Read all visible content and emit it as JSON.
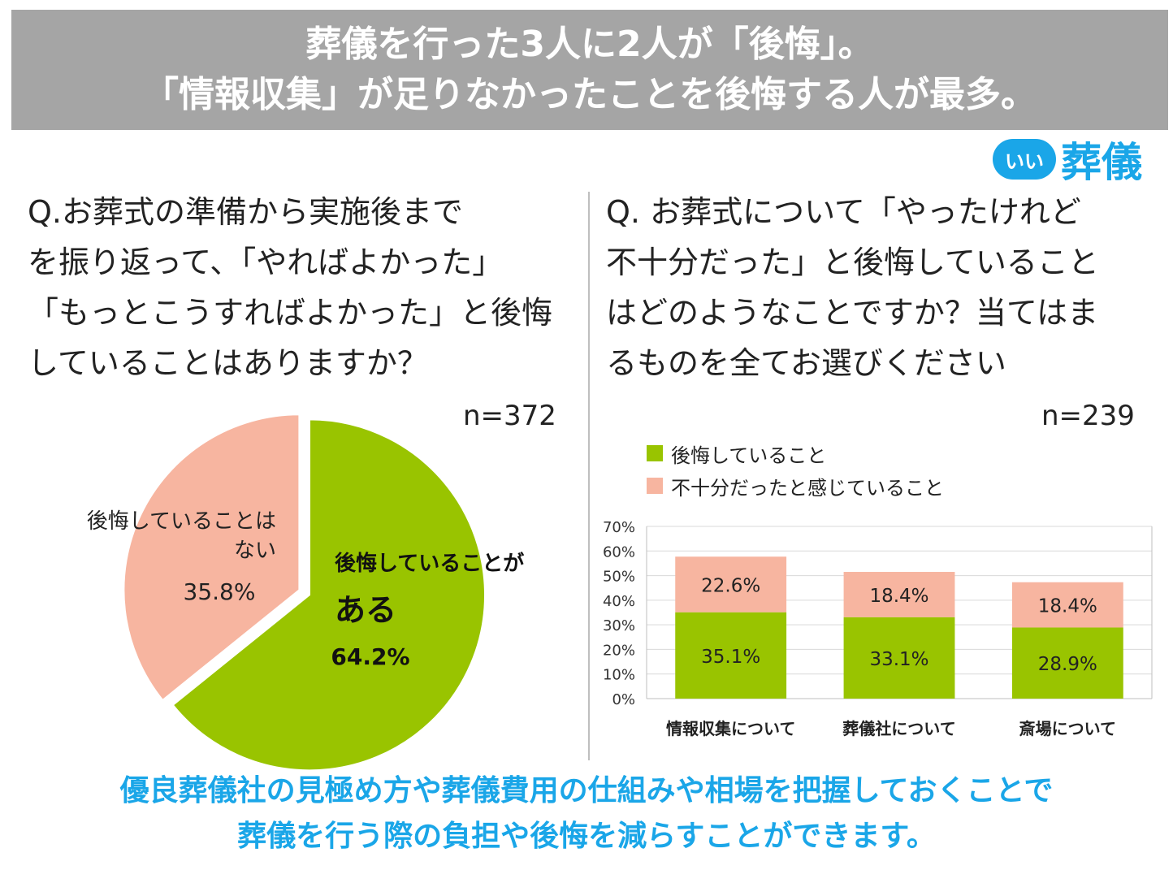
{
  "header": {
    "line1": "葬儀を行った3人に2人が「後悔」。",
    "line2": "「情報収集」が足りなかったことを後悔する人が最多。"
  },
  "logo": {
    "badge": "いい",
    "name": "葬儀",
    "color": "#1aa6e8"
  },
  "left": {
    "question": "Q.お葬式の準備から実施後まで\nを振り返って、「やればよかった」\n「もっとこうすればよかった」と後悔\nしていることはありますか？",
    "n": "n=372"
  },
  "right": {
    "question": "Q. お葬式について「やったけれど\n不十分だった」と後悔していること\nはどのようなことですか？当てはま\nるものを全てお選びください",
    "n": "n=239"
  },
  "footer": {
    "line1": "優良葬儀社の見極め方や葬儀費用の仕組みや相場を把握しておくことで",
    "line2": "葬儀を行う際の負担や後悔を減らすことができます。"
  },
  "chart_data": [
    {
      "type": "pie",
      "slices": [
        {
          "label_line1": "後悔していることが",
          "label_line2": "ある",
          "value": 64.2,
          "value_label": "64.2%",
          "color": "#99c400"
        },
        {
          "label_line1": "後悔していることは",
          "label_line2": "ない",
          "value": 35.8,
          "value_label": "35.8%",
          "color": "#f7b5a0"
        }
      ]
    },
    {
      "type": "bar",
      "stacked": true,
      "categories": [
        "情報収集について",
        "葬儀社について",
        "斎場について"
      ],
      "series": [
        {
          "name": "後悔していること",
          "values": [
            35.1,
            33.1,
            28.9
          ],
          "labels": [
            "35.1%",
            "33.1%",
            "28.9%"
          ],
          "color": "#99c400"
        },
        {
          "name": "不十分だったと感じていること",
          "values": [
            22.6,
            18.4,
            18.4
          ],
          "labels": [
            "22.6%",
            "18.4%",
            "18.4%"
          ],
          "color": "#f7b5a0"
        }
      ],
      "ylim": [
        0,
        70
      ],
      "yticks": [
        "0%",
        "10%",
        "20%",
        "30%",
        "40%",
        "50%",
        "60%",
        "70%"
      ],
      "grid": true,
      "legend": "top-left"
    }
  ]
}
